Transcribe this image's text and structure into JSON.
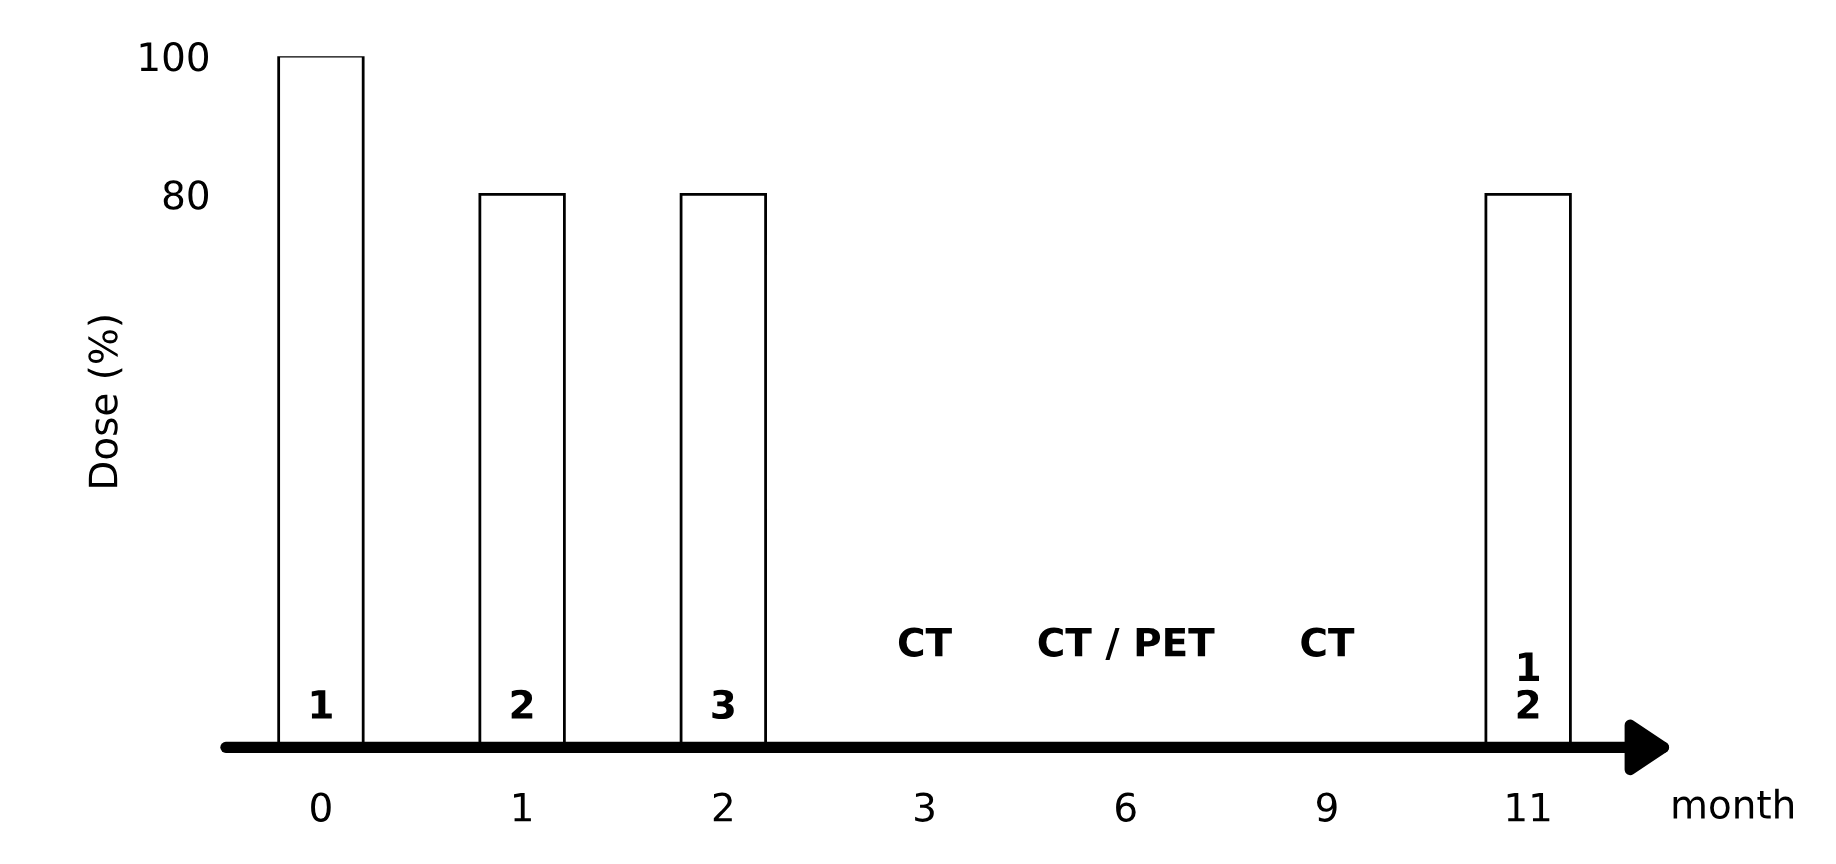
{
  "chart_data": {
    "type": "bar",
    "ylabel": "Dose (%)",
    "xlabel": "month",
    "categories": [
      "0",
      "1",
      "2",
      "3",
      "6",
      "9",
      "11"
    ],
    "values": [
      100,
      80,
      80,
      null,
      null,
      null,
      80
    ],
    "color": "#ffffff",
    "ylim": [
      0,
      100
    ],
    "yticks": [
      80,
      100
    ],
    "grid": false,
    "annotations": [
      "1",
      "2",
      "3",
      "CT",
      "CT / PET",
      "CT",
      "1\n2"
    ]
  }
}
